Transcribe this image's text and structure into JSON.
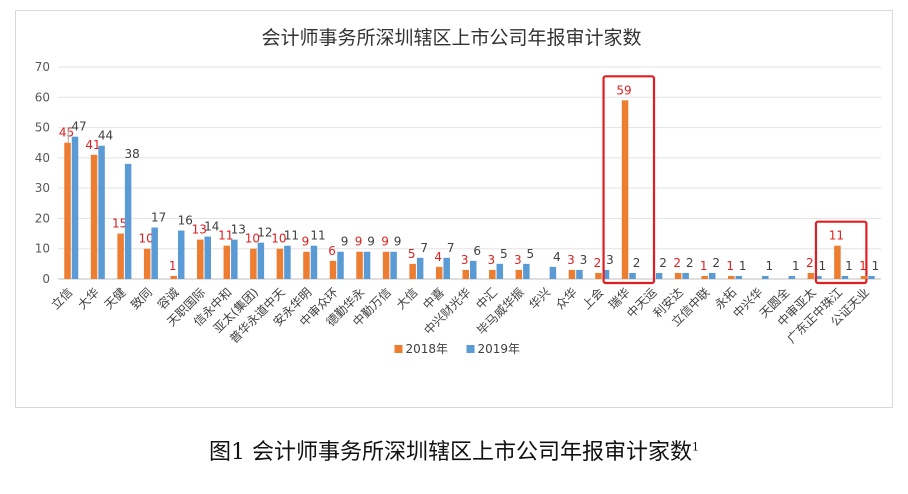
{
  "figure_caption": "图1 会计师事务所深圳辖区上市公司年报审计家数",
  "figure_caption_note": "1",
  "chart_data": {
    "type": "bar",
    "title": "会计师事务所深圳辖区上市公司年报审计家数",
    "xlabel": "",
    "ylabel": "",
    "ylim": [
      0,
      70
    ],
    "yticks": [
      0,
      10,
      20,
      30,
      40,
      50,
      60,
      70
    ],
    "grid": true,
    "legend_position": "bottom",
    "categories": [
      "立信",
      "大华",
      "天健",
      "致同",
      "容诚",
      "天职国际",
      "信永中和",
      "亚太(集团)",
      "普华永道中天",
      "安永华明",
      "中审众环",
      "德勤华永",
      "中勤万信",
      "大信",
      "中喜",
      "中兴财光华",
      "中汇",
      "毕马威华振",
      "华兴",
      "众华",
      "上会",
      "瑞华",
      "中天运",
      "利安达",
      "立信中联",
      "永拓",
      "中兴华",
      "天圆全",
      "中审亚太",
      "广东正中珠江",
      "公证天业"
    ],
    "series": [
      {
        "name": "2018年",
        "color": "#ED7D31",
        "label_color": "#E02020",
        "values": [
          45,
          41,
          15,
          10,
          1,
          13,
          11,
          10,
          10,
          9,
          6,
          9,
          9,
          5,
          4,
          3,
          3,
          3,
          null,
          3,
          2,
          59,
          null,
          2,
          1,
          1,
          null,
          null,
          2,
          11,
          1
        ]
      },
      {
        "name": "2019年",
        "color": "#5B9BD5",
        "label_color": "#404040",
        "values": [
          47,
          44,
          38,
          17,
          16,
          14,
          13,
          12,
          11,
          11,
          9,
          9,
          9,
          7,
          7,
          6,
          5,
          5,
          4,
          3,
          3,
          2,
          2,
          2,
          2,
          1,
          1,
          1,
          1,
          1,
          1
        ]
      }
    ],
    "highlight_boxes": [
      "瑞华",
      "广东正中珠江"
    ],
    "highlight_color": "#E02020"
  }
}
